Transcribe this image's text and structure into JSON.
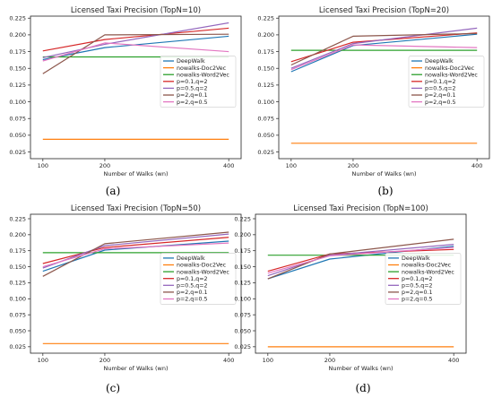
{
  "chart_data": [
    {
      "type": "line",
      "caption": "(a)",
      "title": "Licensed Taxi Precision (TopN=10)",
      "xlabel": "Number of Walks (wn)",
      "x": [
        100,
        200,
        400
      ],
      "yticks": [
        0.025,
        0.05,
        0.075,
        0.1,
        0.125,
        0.15,
        0.175,
        0.2,
        0.225
      ],
      "ylim": [
        0.015,
        0.228
      ],
      "legend_position": "center-right",
      "series": [
        {
          "name": "DeepWalk",
          "color": "#1f77b4",
          "values": [
            0.163,
            0.181,
            0.198
          ]
        },
        {
          "name": "nowalks-Doc2Vec",
          "color": "#ff7f0e",
          "values": [
            0.044,
            0.044,
            0.044
          ]
        },
        {
          "name": "nowalks-Word2Vec",
          "color": "#2ca02c",
          "values": [
            0.167,
            0.167,
            0.167
          ]
        },
        {
          "name": "p=0.1,q=2",
          "color": "#d62728",
          "values": [
            0.176,
            0.193,
            0.21
          ]
        },
        {
          "name": "p=0.5,q=2",
          "color": "#9467bd",
          "values": [
            0.166,
            0.186,
            0.218
          ]
        },
        {
          "name": "p=2,q=0.1",
          "color": "#8c564b",
          "values": [
            0.142,
            0.2,
            0.201
          ]
        },
        {
          "name": "p=2,q=0.5",
          "color": "#e377c2",
          "values": [
            0.161,
            0.188,
            0.175
          ]
        }
      ]
    },
    {
      "type": "line",
      "caption": "(b)",
      "title": "Licensed Taxi Precision (TopN=20)",
      "xlabel": "Number of Walks (wn)",
      "x": [
        100,
        200,
        400
      ],
      "yticks": [
        0.025,
        0.05,
        0.075,
        0.1,
        0.125,
        0.15,
        0.175,
        0.2,
        0.225
      ],
      "ylim": [
        0.015,
        0.228
      ],
      "legend_position": "center-right",
      "series": [
        {
          "name": "DeepWalk",
          "color": "#1f77b4",
          "values": [
            0.145,
            0.184,
            0.201
          ]
        },
        {
          "name": "nowalks-Doc2Vec",
          "color": "#ff7f0e",
          "values": [
            0.038,
            0.038,
            0.038
          ]
        },
        {
          "name": "nowalks-Word2Vec",
          "color": "#2ca02c",
          "values": [
            0.177,
            0.177,
            0.177
          ]
        },
        {
          "name": "p=0.1,q=2",
          "color": "#d62728",
          "values": [
            0.16,
            0.189,
            0.203
          ]
        },
        {
          "name": "p=0.5,q=2",
          "color": "#9467bd",
          "values": [
            0.15,
            0.187,
            0.21
          ]
        },
        {
          "name": "p=2,q=0.1",
          "color": "#8c564b",
          "values": [
            0.155,
            0.198,
            0.202
          ]
        },
        {
          "name": "p=2,q=0.5",
          "color": "#e377c2",
          "values": [
            0.148,
            0.185,
            0.181
          ]
        }
      ]
    },
    {
      "type": "line",
      "caption": "(c)",
      "title": "Licensed Taxi Precision (TopN=50)",
      "xlabel": "Number of Walks (wn)",
      "x": [
        100,
        200,
        400
      ],
      "yticks": [
        0.025,
        0.05,
        0.075,
        0.1,
        0.125,
        0.15,
        0.175,
        0.2,
        0.225
      ],
      "ylim": [
        0.015,
        0.232
      ],
      "legend_position": "center-right",
      "series": [
        {
          "name": "DeepWalk",
          "color": "#1f77b4",
          "values": [
            0.143,
            0.176,
            0.19
          ]
        },
        {
          "name": "nowalks-Doc2Vec",
          "color": "#ff7f0e",
          "values": [
            0.03,
            0.03,
            0.03
          ]
        },
        {
          "name": "nowalks-Word2Vec",
          "color": "#2ca02c",
          "values": [
            0.172,
            0.172,
            0.172
          ]
        },
        {
          "name": "p=0.1,q=2",
          "color": "#d62728",
          "values": [
            0.155,
            0.18,
            0.196
          ]
        },
        {
          "name": "p=0.5,q=2",
          "color": "#9467bd",
          "values": [
            0.148,
            0.183,
            0.201
          ]
        },
        {
          "name": "p=2,q=0.1",
          "color": "#8c564b",
          "values": [
            0.135,
            0.186,
            0.204
          ]
        },
        {
          "name": "p=2,q=0.5",
          "color": "#e377c2",
          "values": [
            0.15,
            0.178,
            0.187
          ]
        }
      ]
    },
    {
      "type": "line",
      "caption": "(d)",
      "title": "Licensed Taxi Precision (TopN=100)",
      "xlabel": "Number of Walks (wn)",
      "x": [
        100,
        200,
        400
      ],
      "yticks": [
        0.025,
        0.05,
        0.075,
        0.1,
        0.125,
        0.15,
        0.175,
        0.2,
        0.225
      ],
      "ylim": [
        0.015,
        0.232
      ],
      "legend_position": "center-right",
      "series": [
        {
          "name": "DeepWalk",
          "color": "#1f77b4",
          "values": [
            0.131,
            0.162,
            0.182
          ]
        },
        {
          "name": "nowalks-Doc2Vec",
          "color": "#ff7f0e",
          "values": [
            0.025,
            0.025,
            0.025
          ]
        },
        {
          "name": "nowalks-Word2Vec",
          "color": "#2ca02c",
          "values": [
            0.168,
            0.168,
            0.168
          ]
        },
        {
          "name": "p=0.1,q=2",
          "color": "#d62728",
          "values": [
            0.143,
            0.17,
            0.177
          ]
        },
        {
          "name": "p=0.5,q=2",
          "color": "#9467bd",
          "values": [
            0.136,
            0.168,
            0.185
          ]
        },
        {
          "name": "p=2,q=0.1",
          "color": "#8c564b",
          "values": [
            0.131,
            0.17,
            0.193
          ]
        },
        {
          "name": "p=2,q=0.5",
          "color": "#e377c2",
          "values": [
            0.14,
            0.167,
            0.18
          ]
        }
      ]
    }
  ]
}
